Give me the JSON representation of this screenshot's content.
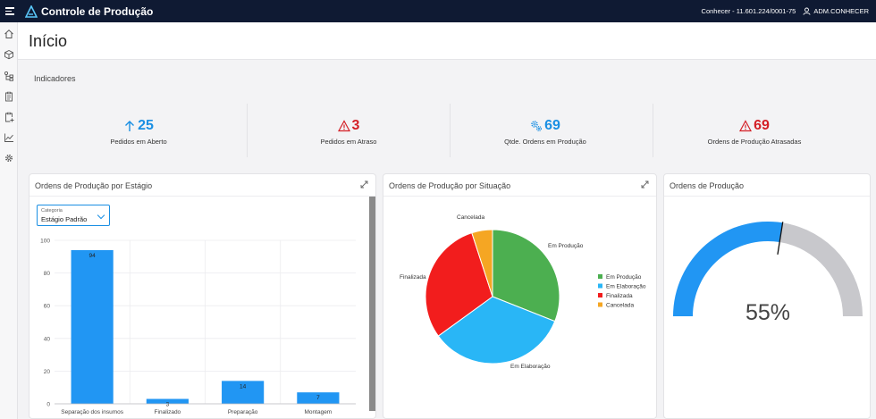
{
  "topbar": {
    "app_title": "Controle de Produção",
    "company": "Conhecer - 11.601.224/0001-75",
    "user": "ADM.CONHECER"
  },
  "sidebar": {
    "icons": [
      "home-icon",
      "box-icon",
      "hierarchy-icon",
      "clipboard-icon",
      "clipboard-add-icon",
      "chart-line-icon",
      "gear-icon"
    ]
  },
  "page": {
    "title": "Início"
  },
  "indicators": {
    "section_label": "Indicadores",
    "kpis": [
      {
        "value": "25",
        "label": "Pedidos em Aberto",
        "icon": "arrow-up-icon",
        "color": "#1a8fe3"
      },
      {
        "value": "3",
        "label": "Pedidos em Atraso",
        "icon": "warning-icon",
        "color": "#d41f26"
      },
      {
        "value": "69",
        "label": "Qtde. Ordens em Produção",
        "icon": "gears-icon",
        "color": "#1a8fe3"
      },
      {
        "value": "69",
        "label": "Ordens de Produção Atrasadas",
        "icon": "warning-icon",
        "color": "#d41f26"
      }
    ]
  },
  "cards": {
    "stage": {
      "title": "Ordens de Produção por Estágio",
      "select_label": "Categoria",
      "select_value": "Estágio Padrão"
    },
    "situation": {
      "title": "Ordens de Produção por Situação"
    },
    "gauge": {
      "title": "Ordens de Produção",
      "value_text": "55%"
    }
  },
  "chart_data": [
    {
      "type": "bar",
      "categories": [
        "Separação dos insumos",
        "Finalizado",
        "Preparação",
        "Montagem"
      ],
      "values": [
        94,
        3,
        14,
        7
      ],
      "ylim": [
        0,
        100
      ],
      "yticks": [
        0,
        20,
        40,
        60,
        80,
        100
      ],
      "color": "#2196f3",
      "grid": true
    },
    {
      "type": "pie",
      "labels": [
        "Em Produção",
        "Em Elaboração",
        "Finalizada",
        "Cancelada"
      ],
      "values": [
        31,
        34,
        30,
        5
      ],
      "colors": [
        "#4caf50",
        "#29b6f6",
        "#f21d1d",
        "#f5a623"
      ],
      "legend": "right"
    },
    {
      "type": "gauge",
      "value": 55,
      "range": [
        0,
        100
      ],
      "colors": [
        "#2196f3",
        "#c8c8cc"
      ]
    }
  ]
}
